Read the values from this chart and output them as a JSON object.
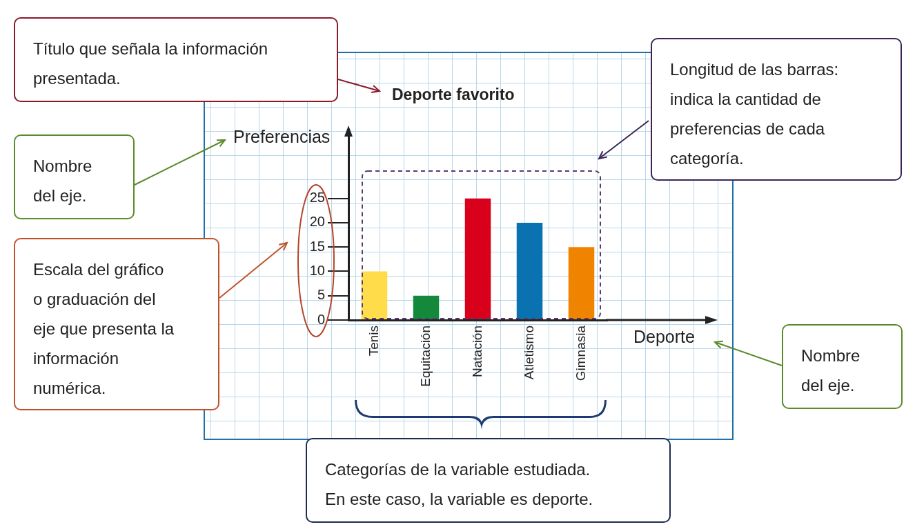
{
  "chart_data": {
    "type": "bar",
    "title": "Deporte favorito",
    "xlabel": "Deporte",
    "ylabel": "Preferencias",
    "categories": [
      "Tenis",
      "Equitación",
      "Natación",
      "Atletismo",
      "Gimnasia"
    ],
    "values": [
      10,
      5,
      25,
      20,
      15
    ],
    "colors": [
      "#ffdd4a",
      "#14893c",
      "#d8001a",
      "#0a72b0",
      "#f08400"
    ],
    "ylim": [
      0,
      38
    ],
    "yticks": [
      0,
      5,
      10,
      15,
      20,
      25
    ],
    "annotations": [
      "Título que señala la información presentada.",
      "Longitud de las barras: indica la cantidad de preferencias de cada categoría.",
      "Nombre del eje.",
      "Escala del gráfico o graduación del eje que presenta la información numérica.",
      "Nombre del eje.",
      "Categorías de la variable estudiada. En este caso, la variable es deporte."
    ]
  }
}
